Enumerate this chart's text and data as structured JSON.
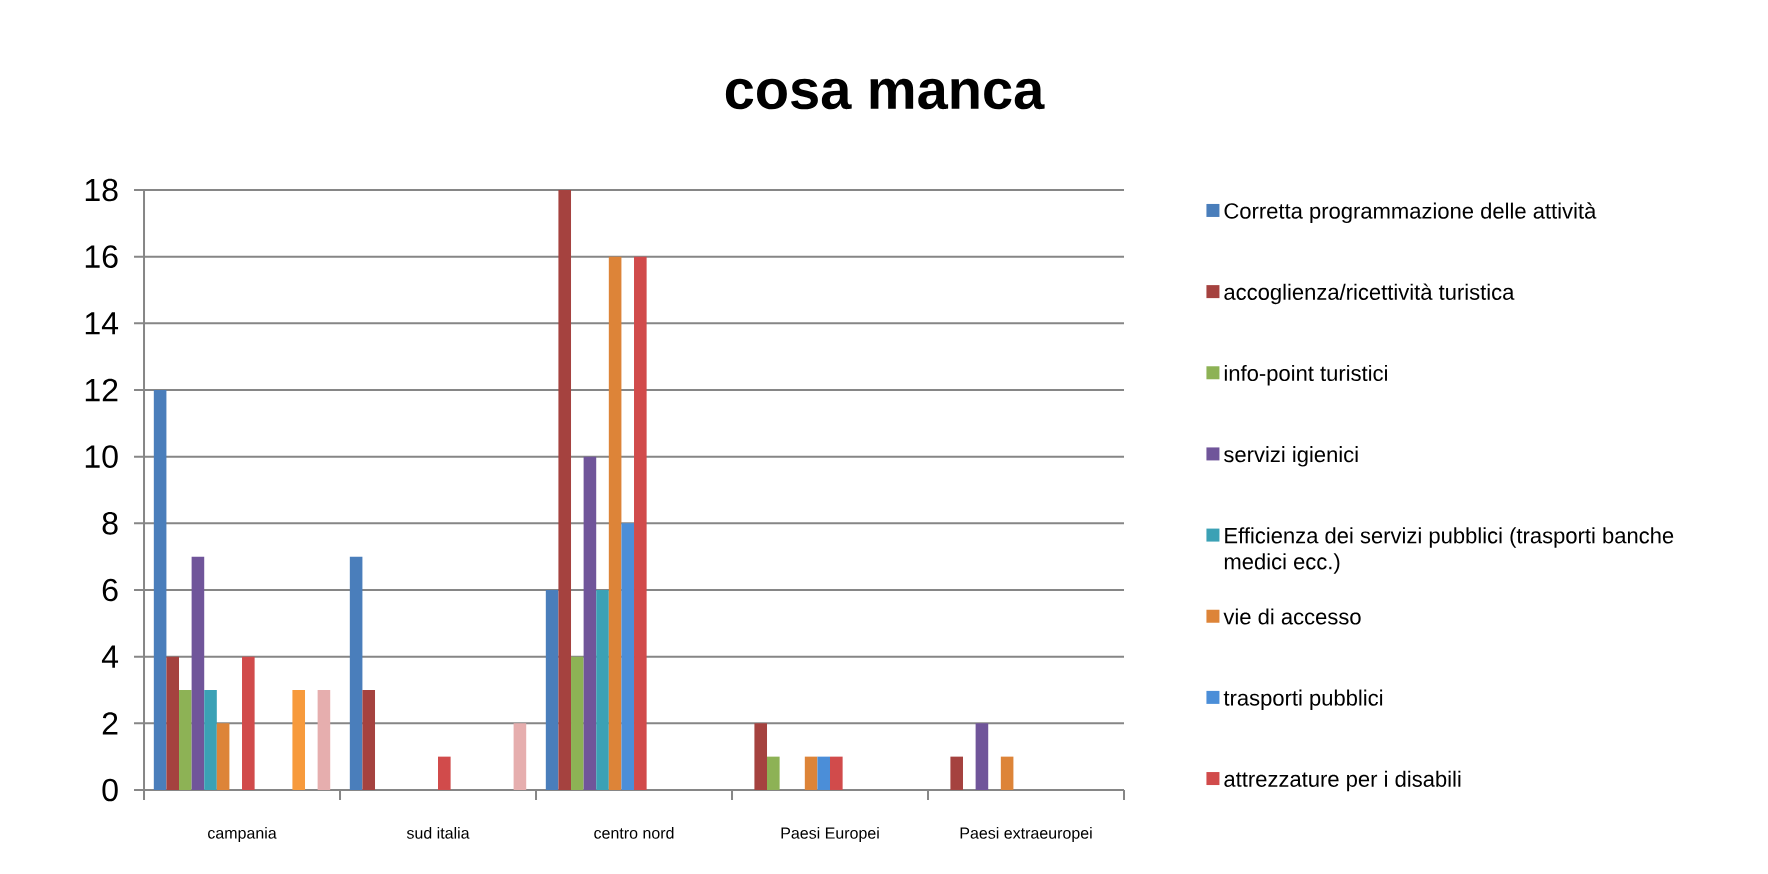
{
  "chart_data": {
    "type": "bar",
    "title": "cosa manca",
    "categories": [
      "campania",
      "sud italia",
      "centro nord",
      "Paesi Europei",
      "Paesi extraeuropei"
    ],
    "series": [
      {
        "name": "Corretta programmazione delle attività",
        "color": "#4A7EBB",
        "values": [
          12,
          7,
          6,
          0,
          0
        ]
      },
      {
        "name": "accoglienza/ricettività turistica",
        "color": "#A5423F",
        "values": [
          4,
          3,
          18,
          2,
          1
        ]
      },
      {
        "name": "info-point turistici",
        "color": "#8DB255",
        "values": [
          3,
          0,
          4,
          1,
          0
        ]
      },
      {
        "name": "servizi igienici",
        "color": "#70559A",
        "values": [
          7,
          0,
          10,
          0,
          2
        ]
      },
      {
        "name": "Efficienza dei servizi pubblici (trasporti banche medici ecc.)",
        "color": "#3BA1B5",
        "values": [
          3,
          0,
          6,
          0,
          0
        ]
      },
      {
        "name": "vie di accesso",
        "color": "#DD8438",
        "values": [
          2,
          0,
          16,
          1,
          1
        ]
      },
      {
        "name": "trasporti pubblici",
        "color": "#4B8ED8",
        "values": [
          0,
          0,
          8,
          1,
          0
        ]
      },
      {
        "name": "attrezzature per i disabili",
        "color": "#D14B4B",
        "values": [
          4,
          1,
          16,
          1,
          0
        ]
      },
      {
        "values": [
          0,
          0,
          0,
          0,
          0
        ]
      },
      {
        "values": [
          0,
          0,
          0,
          0,
          0
        ]
      },
      {
        "values": [
          0,
          0,
          0,
          0,
          0
        ]
      },
      {
        "color": "#F79A3C",
        "values": [
          3,
          0,
          0,
          0,
          0
        ]
      },
      {
        "values": [
          0,
          0,
          0,
          0,
          0
        ]
      },
      {
        "color": "#E6AEAE",
        "values": [
          3,
          2,
          0,
          0,
          0
        ]
      }
    ],
    "ylim": [
      0,
      18
    ],
    "yticks": [
      0,
      2,
      4,
      6,
      8,
      10,
      12,
      14,
      16,
      18
    ],
    "grid": "y",
    "legend": "right"
  }
}
